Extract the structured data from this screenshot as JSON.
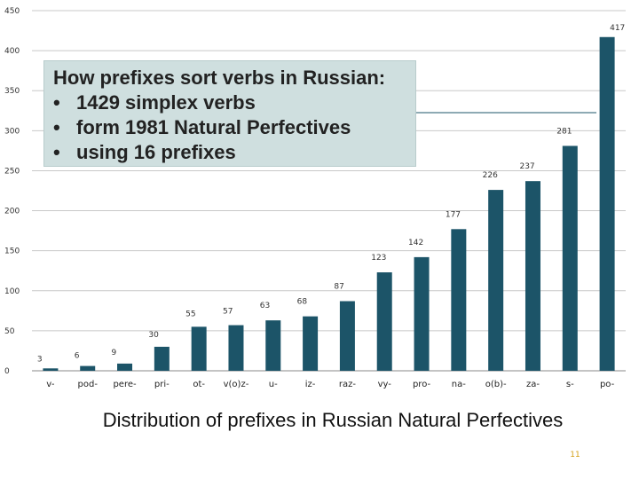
{
  "chart_data": {
    "type": "bar",
    "categories": [
      "v-",
      "pod-",
      "pere-",
      "pri-",
      "ot-",
      "v(o)z-",
      "u-",
      "iz-",
      "raz-",
      "vy-",
      "pro-",
      "na-",
      "o(b)-",
      "za-",
      "s-",
      "po-"
    ],
    "values": [
      3,
      6,
      9,
      30,
      55,
      57,
      63,
      68,
      87,
      123,
      142,
      177,
      226,
      237,
      281,
      417
    ],
    "y_ticks": [
      "0",
      "50",
      "100",
      "150",
      "200",
      "250",
      "300",
      "350",
      "400",
      "450"
    ],
    "ylim": [
      0,
      450
    ],
    "grid": true,
    "title": "",
    "xlabel": "",
    "ylabel": "",
    "bar_color": "#1c5468"
  },
  "callout": {
    "title": "How prefixes sort verbs in Russian:",
    "bullet_glyph": "•",
    "items": [
      "1429 simplex verbs",
      "form 1981 Natural Perfectives",
      "using 16 prefixes"
    ],
    "background": "#cfdfdf"
  },
  "caption": "Distribution of prefixes in Russian Natural Perfectives",
  "slide_number": "11"
}
